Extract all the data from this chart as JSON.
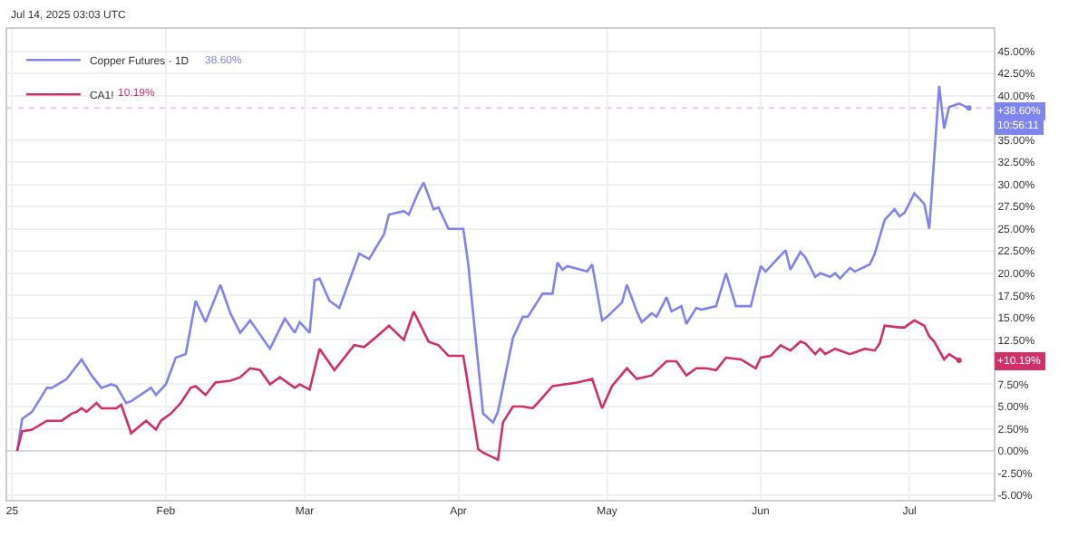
{
  "chart_data": {
    "type": "line",
    "subtitle": "Jul 14, 2025 03:03 UTC",
    "annotations": [
      "38.60%",
      "10.19%",
      "+38.60%",
      "+10.19%",
      "10:56:11"
    ],
    "series": [
      {
        "name": "Copper Futures · 1D",
        "color": "#7f84ee",
        "x": [
          "2025-01-02",
          "2025-01-03",
          "2025-01-05",
          "2025-01-08",
          "2025-01-09",
          "2025-01-12",
          "2025-01-15",
          "2025-01-17",
          "2025-01-19",
          "2025-01-21",
          "2025-01-22",
          "2025-01-24",
          "2025-01-25",
          "2025-01-29",
          "2025-01-30",
          "2025-02-01",
          "2025-02-03",
          "2025-02-05",
          "2025-02-07",
          "2025-02-09",
          "2025-02-12",
          "2025-02-14",
          "2025-02-16",
          "2025-02-18",
          "2025-02-22",
          "2025-02-25",
          "2025-02-27",
          "2025-02-28",
          "2025-03-02",
          "2025-03-03",
          "2025-03-04",
          "2025-03-06",
          "2025-03-08",
          "2025-03-12",
          "2025-03-14",
          "2025-03-17",
          "2025-03-18",
          "2025-03-21",
          "2025-03-22",
          "2025-03-24",
          "2025-03-25",
          "2025-03-27",
          "2025-03-28",
          "2025-03-30",
          "2025-04-02",
          "2025-04-03",
          "2025-04-06",
          "2025-04-08",
          "2025-04-09",
          "2025-04-12",
          "2025-04-14",
          "2025-04-15",
          "2025-04-18",
          "2025-04-20",
          "2025-04-21",
          "2025-04-22",
          "2025-04-23",
          "2025-04-27",
          "2025-04-28",
          "2025-04-30",
          "2025-05-01",
          "2025-05-04",
          "2025-05-05",
          "2025-05-07",
          "2025-05-08",
          "2025-05-10",
          "2025-05-11",
          "2025-05-13",
          "2025-05-14",
          "2025-05-16",
          "2025-05-17",
          "2025-05-19",
          "2025-05-20",
          "2025-05-23",
          "2025-05-25",
          "2025-05-27",
          "2025-05-30",
          "2025-06-01",
          "2025-06-02",
          "2025-06-06",
          "2025-06-07",
          "2025-06-09",
          "2025-06-10",
          "2025-06-12",
          "2025-06-13",
          "2025-06-15",
          "2025-06-16",
          "2025-06-17",
          "2025-06-19",
          "2025-06-20",
          "2025-06-23",
          "2025-06-24",
          "2025-06-26",
          "2025-06-28",
          "2025-06-29",
          "2025-06-30",
          "2025-07-02",
          "2025-07-04",
          "2025-07-05",
          "2025-07-07",
          "2025-07-08",
          "2025-07-09",
          "2025-07-11",
          "2025-07-13"
        ],
        "values": [
          0,
          3.6,
          4.4,
          7.1,
          7.1,
          8.1,
          10.3,
          8.5,
          7.1,
          7.5,
          7.3,
          5.4,
          5.6,
          7.1,
          6.3,
          7.5,
          10.5,
          10.9,
          16.9,
          14.5,
          18.7,
          15.5,
          13.3,
          14.7,
          11.5,
          14.9,
          13.3,
          14.5,
          13.3,
          19.2,
          19.4,
          16.9,
          16.1,
          22.2,
          21.6,
          24.4,
          26.6,
          27.0,
          26.6,
          29.2,
          30.2,
          27.2,
          27.4,
          25.0,
          25.0,
          21.0,
          4.2,
          3.2,
          4.4,
          12.7,
          15.1,
          15.1,
          17.7,
          17.7,
          21.2,
          20.4,
          20.8,
          20.2,
          21.0,
          14.7,
          15.1,
          16.7,
          18.7,
          15.7,
          14.5,
          15.5,
          15.1,
          17.3,
          15.7,
          16.3,
          14.3,
          16.1,
          15.9,
          16.3,
          20.0,
          16.3,
          16.3,
          20.8,
          20.2,
          22.6,
          20.4,
          22.4,
          21.8,
          19.6,
          20.0,
          19.6,
          20.0,
          19.4,
          20.6,
          20.2,
          21.0,
          22.2,
          26.0,
          27.2,
          26.4,
          26.8,
          29.0,
          27.8,
          25.0,
          41.1,
          36.3,
          38.7,
          39.1,
          38.6
        ],
        "marker": "none"
      },
      {
        "name": "CA1!",
        "color": "#d0306a",
        "x": [
          "2025-01-02",
          "2025-01-03",
          "2025-01-05",
          "2025-01-08",
          "2025-01-11",
          "2025-01-13",
          "2025-01-14",
          "2025-01-15",
          "2025-01-16",
          "2025-01-18",
          "2025-01-19",
          "2025-01-22",
          "2025-01-23",
          "2025-01-25",
          "2025-01-28",
          "2025-01-30",
          "2025-01-31",
          "2025-02-02",
          "2025-02-04",
          "2025-02-06",
          "2025-02-07",
          "2025-02-09",
          "2025-02-11",
          "2025-02-14",
          "2025-02-16",
          "2025-02-18",
          "2025-02-20",
          "2025-02-22",
          "2025-02-24",
          "2025-02-27",
          "2025-02-28",
          "2025-03-02",
          "2025-03-04",
          "2025-03-07",
          "2025-03-11",
          "2025-03-13",
          "2025-03-16",
          "2025-03-18",
          "2025-03-21",
          "2025-03-23",
          "2025-03-26",
          "2025-03-28",
          "2025-03-30",
          "2025-04-02",
          "2025-04-03",
          "2025-04-05",
          "2025-04-06",
          "2025-04-09",
          "2025-04-10",
          "2025-04-12",
          "2025-04-14",
          "2025-04-16",
          "2025-04-17",
          "2025-04-20",
          "2025-04-25",
          "2025-04-28",
          "2025-04-30",
          "2025-05-02",
          "2025-05-05",
          "2025-05-07",
          "2025-05-10",
          "2025-05-13",
          "2025-05-15",
          "2025-05-17",
          "2025-05-19",
          "2025-05-21",
          "2025-05-23",
          "2025-05-25",
          "2025-05-28",
          "2025-05-31",
          "2025-06-01",
          "2025-06-03",
          "2025-06-05",
          "2025-06-07",
          "2025-06-09",
          "2025-06-10",
          "2025-06-12",
          "2025-06-13",
          "2025-06-14",
          "2025-06-16",
          "2025-06-19",
          "2025-06-22",
          "2025-06-24",
          "2025-06-25",
          "2025-06-26",
          "2025-06-29",
          "2025-06-30",
          "2025-07-02",
          "2025-07-04",
          "2025-07-05",
          "2025-07-06",
          "2025-07-08",
          "2025-07-09",
          "2025-07-11"
        ],
        "values": [
          0,
          2.2,
          2.4,
          3.4,
          3.4,
          4.2,
          4.4,
          4.8,
          4.4,
          5.4,
          4.8,
          4.8,
          5.2,
          2.0,
          3.4,
          2.4,
          3.4,
          4.2,
          5.4,
          7.1,
          7.3,
          6.3,
          7.7,
          7.9,
          8.3,
          9.3,
          9.1,
          7.5,
          8.3,
          7.1,
          7.5,
          6.9,
          11.5,
          9.1,
          11.9,
          11.7,
          13.1,
          14.1,
          12.5,
          15.7,
          12.3,
          11.9,
          10.7,
          10.7,
          7.3,
          0.2,
          -0.2,
          -1.0,
          3.2,
          5.0,
          5.0,
          4.8,
          5.4,
          7.3,
          7.7,
          8.1,
          4.8,
          7.3,
          9.3,
          8.1,
          8.5,
          10.1,
          10.1,
          8.5,
          9.3,
          9.3,
          9.1,
          10.5,
          10.3,
          9.3,
          10.5,
          10.7,
          11.9,
          11.3,
          12.3,
          12.1,
          10.9,
          11.5,
          10.9,
          11.5,
          10.9,
          11.5,
          11.3,
          12.1,
          14.1,
          13.9,
          13.9,
          14.7,
          14.1,
          12.9,
          12.3,
          10.3,
          10.9,
          10.19
        ]
      }
    ],
    "ylim": [
      -5.5,
      47.5
    ],
    "yticks": [
      {
        "value": -5,
        "label": "-5.00%"
      },
      {
        "value": -2.5,
        "label": "-2.50%"
      },
      {
        "value": 0,
        "label": "0.00%"
      },
      {
        "value": 2.5,
        "label": "2.50%"
      },
      {
        "value": 5,
        "label": "5.00%"
      },
      {
        "value": 7.5,
        "label": "7.50%"
      },
      {
        "value": 12.5,
        "label": "12.50%"
      },
      {
        "value": 15,
        "label": "15.00%"
      },
      {
        "value": 17.5,
        "label": "17.50%"
      },
      {
        "value": 20,
        "label": "20.00%"
      },
      {
        "value": 22.5,
        "label": "22.50%"
      },
      {
        "value": 25,
        "label": "25.00%"
      },
      {
        "value": 27.5,
        "label": "27.50%"
      },
      {
        "value": 30,
        "label": "30.00%"
      },
      {
        "value": 32.5,
        "label": "32.50%"
      },
      {
        "value": 35,
        "label": "35.00%"
      },
      {
        "value": 40,
        "label": "40.00%"
      },
      {
        "value": 42.5,
        "label": "42.50%"
      },
      {
        "value": 45,
        "label": "45.00%"
      }
    ],
    "xlim": [
      "2024-12-31",
      "2025-07-18"
    ],
    "xticks": [
      {
        "value": "2025-01-01",
        "label": "25"
      },
      {
        "value": "2025-02-01",
        "label": "Feb"
      },
      {
        "value": "2025-03-01",
        "label": "Mar"
      },
      {
        "value": "2025-04-01",
        "label": "Apr"
      },
      {
        "value": "2025-05-01",
        "label": "May"
      },
      {
        "value": "2025-06-01",
        "label": "Jun"
      },
      {
        "value": "2025-07-01",
        "label": "Jul"
      }
    ],
    "ref_lines": [
      {
        "axis": "y",
        "value": 38.6,
        "color": "#e3c8f5",
        "line_style": "dotted"
      }
    ],
    "grid": true,
    "legend": "top left",
    "marker": "none",
    "line_style": "solid"
  }
}
